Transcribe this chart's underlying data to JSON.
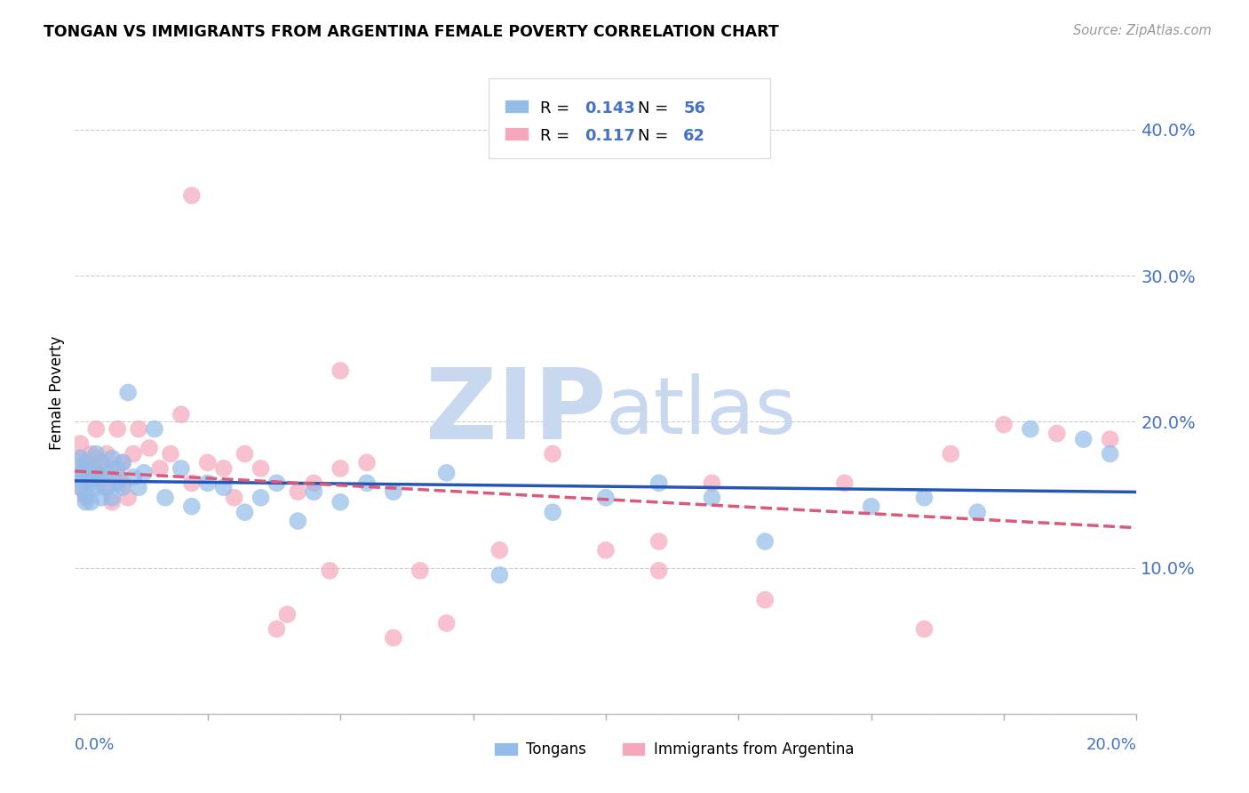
{
  "title": "TONGAN VS IMMIGRANTS FROM ARGENTINA FEMALE POVERTY CORRELATION CHART",
  "source": "Source: ZipAtlas.com",
  "ylabel": "Female Poverty",
  "yticks": [
    0.0,
    0.1,
    0.2,
    0.3,
    0.4
  ],
  "ytick_labels": [
    "",
    "10.0%",
    "20.0%",
    "30.0%",
    "40.0%"
  ],
  "xlim": [
    0.0,
    0.2
  ],
  "ylim": [
    0.0,
    0.44
  ],
  "r_tongan": 0.143,
  "n_tongan": 56,
  "r_argentina": 0.117,
  "n_argentina": 62,
  "color_tongan": "#93bce9",
  "color_argentina": "#f5a7bc",
  "line_color_tongan": "#2457b5",
  "line_color_argentina": "#d95a7a",
  "watermark_zip": "ZIP",
  "watermark_atlas": "atlas",
  "watermark_color_zip": "#c8d8ee",
  "watermark_color_atlas": "#c8d8ee",
  "tongan_x": [
    0.001,
    0.001,
    0.001,
    0.001,
    0.002,
    0.002,
    0.002,
    0.002,
    0.003,
    0.003,
    0.003,
    0.004,
    0.004,
    0.004,
    0.005,
    0.005,
    0.005,
    0.006,
    0.006,
    0.007,
    0.007,
    0.008,
    0.008,
    0.009,
    0.009,
    0.01,
    0.011,
    0.012,
    0.013,
    0.015,
    0.017,
    0.02,
    0.022,
    0.025,
    0.028,
    0.032,
    0.035,
    0.038,
    0.042,
    0.045,
    0.05,
    0.055,
    0.06,
    0.07,
    0.08,
    0.09,
    0.1,
    0.11,
    0.12,
    0.13,
    0.15,
    0.16,
    0.17,
    0.18,
    0.19,
    0.195
  ],
  "tongan_y": [
    0.155,
    0.16,
    0.175,
    0.165,
    0.15,
    0.145,
    0.168,
    0.172,
    0.158,
    0.162,
    0.145,
    0.178,
    0.155,
    0.165,
    0.172,
    0.148,
    0.162,
    0.165,
    0.155,
    0.175,
    0.148,
    0.158,
    0.168,
    0.155,
    0.172,
    0.22,
    0.162,
    0.155,
    0.165,
    0.195,
    0.148,
    0.168,
    0.142,
    0.158,
    0.155,
    0.138,
    0.148,
    0.158,
    0.132,
    0.152,
    0.145,
    0.158,
    0.152,
    0.165,
    0.095,
    0.138,
    0.148,
    0.158,
    0.148,
    0.118,
    0.142,
    0.148,
    0.138,
    0.195,
    0.188,
    0.178
  ],
  "argentina_x": [
    0.001,
    0.001,
    0.001,
    0.001,
    0.002,
    0.002,
    0.002,
    0.003,
    0.003,
    0.003,
    0.004,
    0.004,
    0.004,
    0.005,
    0.005,
    0.005,
    0.006,
    0.006,
    0.007,
    0.007,
    0.008,
    0.008,
    0.009,
    0.009,
    0.01,
    0.011,
    0.012,
    0.014,
    0.016,
    0.018,
    0.02,
    0.022,
    0.025,
    0.028,
    0.03,
    0.032,
    0.035,
    0.038,
    0.04,
    0.042,
    0.045,
    0.048,
    0.05,
    0.055,
    0.06,
    0.065,
    0.07,
    0.08,
    0.09,
    0.1,
    0.11,
    0.12,
    0.13,
    0.145,
    0.16,
    0.175,
    0.185,
    0.195,
    0.022,
    0.05,
    0.11,
    0.165
  ],
  "argentina_y": [
    0.155,
    0.185,
    0.165,
    0.175,
    0.158,
    0.172,
    0.148,
    0.162,
    0.178,
    0.168,
    0.175,
    0.162,
    0.195,
    0.165,
    0.158,
    0.172,
    0.178,
    0.155,
    0.168,
    0.145,
    0.195,
    0.162,
    0.158,
    0.172,
    0.148,
    0.178,
    0.195,
    0.182,
    0.168,
    0.178,
    0.205,
    0.158,
    0.172,
    0.168,
    0.148,
    0.178,
    0.168,
    0.058,
    0.068,
    0.152,
    0.158,
    0.098,
    0.168,
    0.172,
    0.052,
    0.098,
    0.062,
    0.112,
    0.178,
    0.112,
    0.118,
    0.158,
    0.078,
    0.158,
    0.058,
    0.198,
    0.192,
    0.188,
    0.355,
    0.235,
    0.098,
    0.178
  ]
}
